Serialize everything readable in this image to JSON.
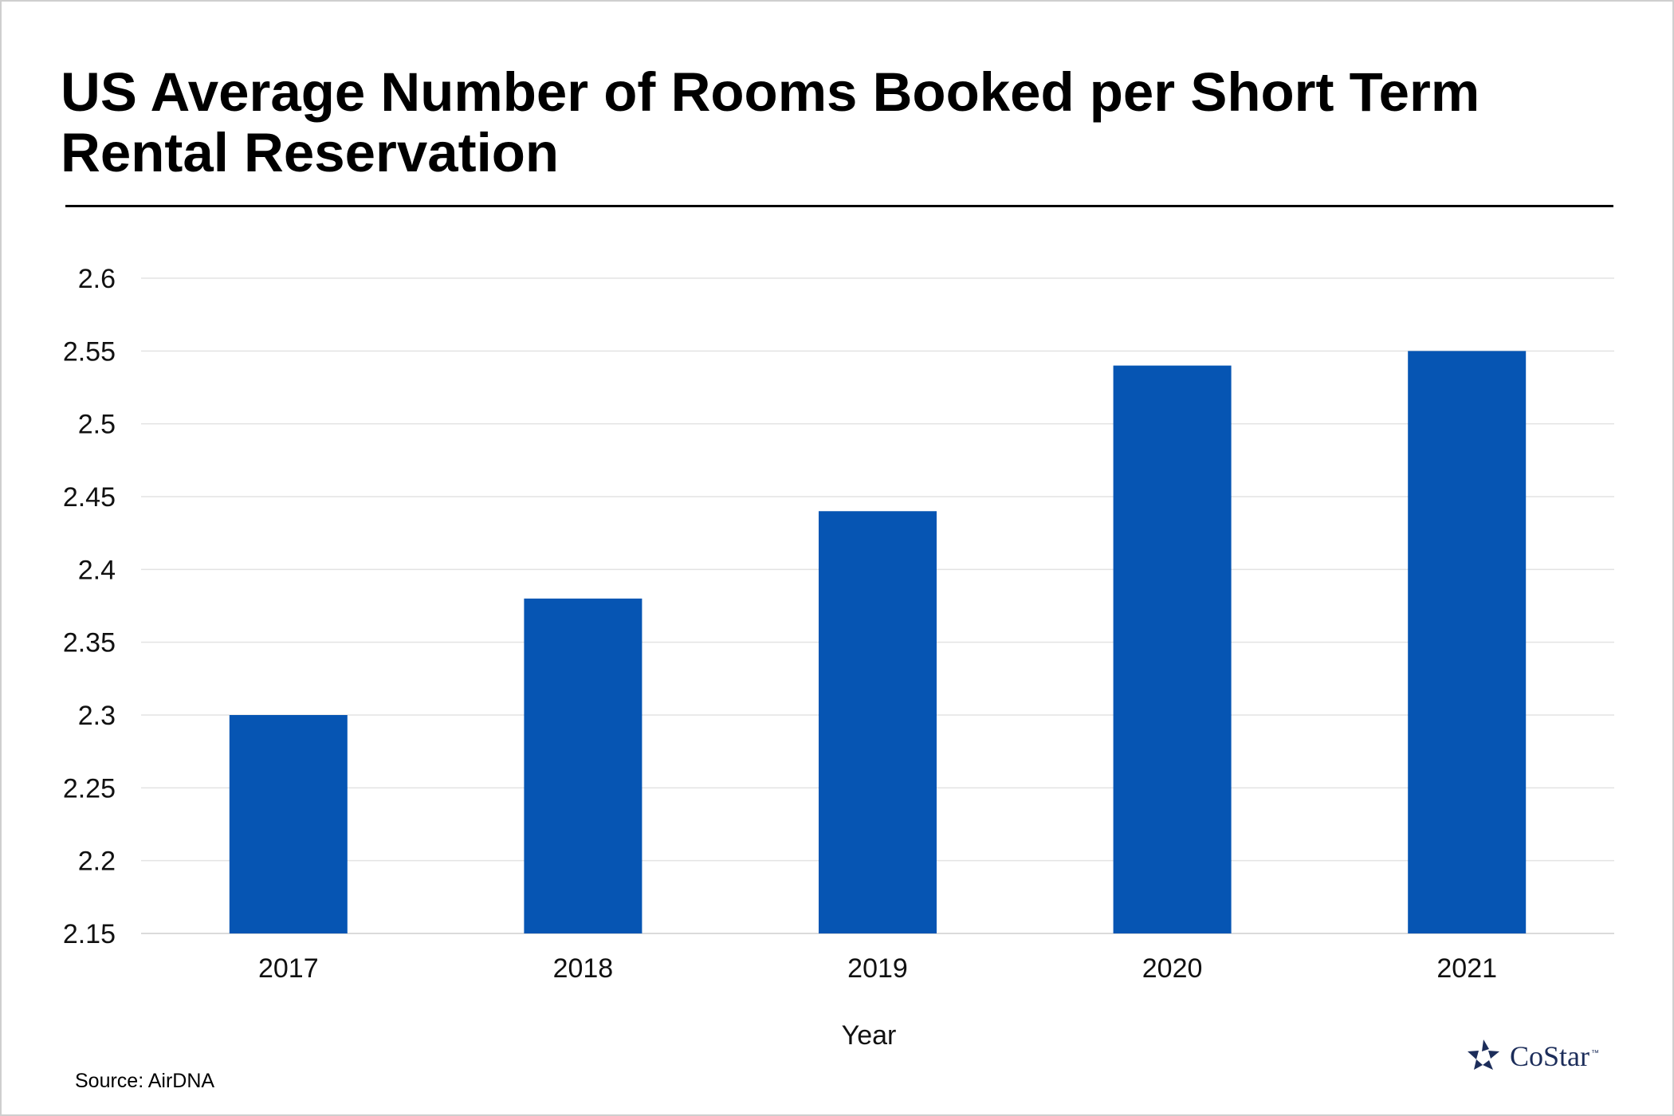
{
  "title": "US Average Number of Rooms Booked per Short Term Rental Reservation",
  "source": "Source: AirDNA",
  "logo": {
    "text": "CoStar",
    "tm": "™",
    "icon": "costar-star-icon",
    "color": "#1c2d5a"
  },
  "chart_data": {
    "type": "bar",
    "categories": [
      "2017",
      "2018",
      "2019",
      "2020",
      "2021"
    ],
    "values": [
      2.3,
      2.38,
      2.44,
      2.54,
      2.55
    ],
    "xlabel": "Year",
    "ylabel": "",
    "ylim": [
      2.15,
      2.6
    ],
    "yticks": [
      "2.15",
      "2.2",
      "2.25",
      "2.3",
      "2.35",
      "2.4",
      "2.45",
      "2.5",
      "2.55",
      "2.6"
    ],
    "bar_color": "#0655b3",
    "grid": true,
    "legend": "none"
  }
}
